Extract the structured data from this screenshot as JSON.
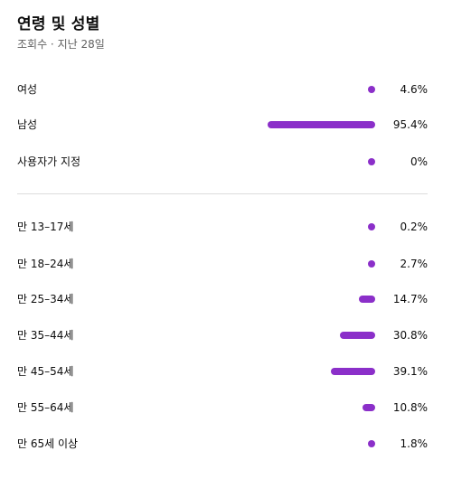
{
  "header": {
    "title": "연령 및 성별",
    "subtitle": "조회수 · 지난 28일"
  },
  "colors": {
    "bar": "#8b2fc9"
  },
  "gender": [
    {
      "label": "여성",
      "value": "4.6%",
      "fraction": 0.046
    },
    {
      "label": "남성",
      "value": "95.4%",
      "fraction": 0.954
    },
    {
      "label": "사용자가 지정",
      "value": "0%",
      "fraction": 0.0
    }
  ],
  "age": [
    {
      "label": "만 13–17세",
      "value": "0.2%",
      "fraction": 0.002
    },
    {
      "label": "만 18–24세",
      "value": "2.7%",
      "fraction": 0.027
    },
    {
      "label": "만 25–34세",
      "value": "14.7%",
      "fraction": 0.147
    },
    {
      "label": "만 35–44세",
      "value": "30.8%",
      "fraction": 0.308
    },
    {
      "label": "만 45–54세",
      "value": "39.1%",
      "fraction": 0.391
    },
    {
      "label": "만 55–64세",
      "value": "10.8%",
      "fraction": 0.108
    },
    {
      "label": "만 65세 이상",
      "value": "1.8%",
      "fraction": 0.018
    }
  ]
}
